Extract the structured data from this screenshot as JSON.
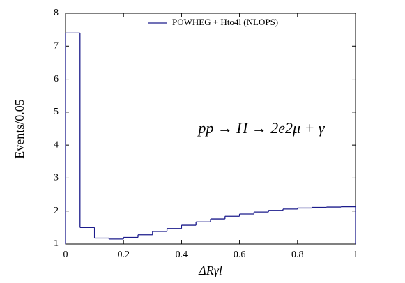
{
  "chart_data": {
    "type": "histogram",
    "xlabel": "ΔRγl",
    "ylabel": "Events/0.05",
    "annotation": "pp → H → 2e2μ + γ",
    "bins": [
      0,
      0.05,
      0.1,
      0.15,
      0.2,
      0.25,
      0.3,
      0.35,
      0.4,
      0.45,
      0.5,
      0.55,
      0.6,
      0.65,
      0.7,
      0.75,
      0.8,
      0.85,
      0.9,
      0.95,
      1
    ],
    "series": [
      {
        "name": "POWHEG + Hto4l (NLOPS)",
        "color": "#1c1c8c",
        "values": [
          7.4,
          1.5,
          1.18,
          1.15,
          1.2,
          1.28,
          1.38,
          1.47,
          1.57,
          1.67,
          1.76,
          1.84,
          1.91,
          1.97,
          2.02,
          2.06,
          2.09,
          2.11,
          2.12,
          2.13
        ]
      }
    ],
    "xlim": [
      0,
      1
    ],
    "xticks": [
      0,
      0.2,
      0.4,
      0.6,
      0.8,
      1
    ],
    "ylim": [
      1,
      8
    ],
    "yticks": [
      1,
      2,
      3,
      4,
      5,
      6,
      7,
      8
    ],
    "legend": "top"
  }
}
